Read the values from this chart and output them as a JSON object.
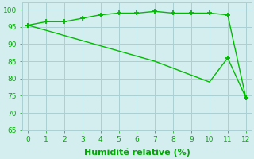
{
  "x": [
    0,
    1,
    2,
    3,
    4,
    5,
    6,
    7,
    8,
    9,
    10,
    11,
    12
  ],
  "line1": [
    95.5,
    96.5,
    96.5,
    97.5,
    98.5,
    99.0,
    99.0,
    99.5,
    99.0,
    99.0,
    99.0,
    98.5,
    74.5
  ],
  "line2": [
    95.5,
    94.0,
    92.5,
    91.0,
    89.5,
    88.0,
    86.5,
    85.0,
    83.0,
    81.0,
    79.0,
    86.0,
    74.5
  ],
  "line1_markers": [
    0,
    1,
    2,
    3,
    4,
    5,
    6,
    7,
    8,
    9,
    10,
    11,
    12
  ],
  "line2_markers": [
    0,
    11,
    12
  ],
  "line_color": "#00bb00",
  "bg_color": "#d4eef0",
  "grid_color": "#aad0d4",
  "xlabel": "Humidité relative (%)",
  "ylim": [
    65,
    102
  ],
  "xlim": [
    -0.3,
    12.3
  ],
  "yticks": [
    65,
    70,
    75,
    80,
    85,
    90,
    95,
    100
  ],
  "xticks": [
    0,
    1,
    2,
    3,
    4,
    5,
    6,
    7,
    8,
    9,
    10,
    11,
    12
  ],
  "marker": "+",
  "markersize": 5,
  "markeredgewidth": 1.3,
  "linewidth": 1.0,
  "xlabel_fontsize": 8,
  "tick_fontsize": 6.5,
  "xlabel_color": "#00aa00",
  "tick_color": "#00aa00"
}
